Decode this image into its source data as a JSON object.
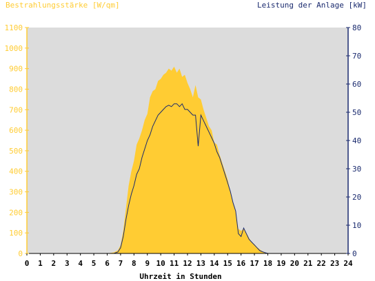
{
  "chart_data": {
    "type": "area",
    "title_left": "Bestrahlungsstärke [W/qm]",
    "title_right": "Leistung der Anlage [kW]",
    "xlabel": "Uhrzeit in Stunden",
    "x_ticks": [
      "0",
      "1",
      "2",
      "3",
      "4",
      "5",
      "6",
      "7",
      "8",
      "9",
      "10",
      "11",
      "12",
      "13",
      "14",
      "15",
      "16",
      "17",
      "18",
      "19",
      "20",
      "21",
      "22",
      "23",
      "24"
    ],
    "y_left_ticks": [
      "0",
      "100",
      "200",
      "300",
      "400",
      "500",
      "600",
      "700",
      "800",
      "900",
      "1000",
      "1100"
    ],
    "y_right_ticks": [
      "0",
      "10",
      "20",
      "30",
      "40",
      "50",
      "60",
      "70",
      "80"
    ],
    "xlim": [
      0,
      24
    ],
    "ylim_left": [
      0,
      1100
    ],
    "ylim_right": [
      0,
      80
    ],
    "grid": false,
    "colors": {
      "plot_background": "#dcdcdc",
      "irradiance_fill": "#ffcc33",
      "power_line": "#1a2a6e",
      "left_axis": "#ffcc33",
      "right_axis": "#1a2a6e",
      "x_axis": "#000000"
    },
    "series": [
      {
        "type": "area",
        "axis": "left",
        "x": [
          0,
          6.0,
          6.5,
          6.8,
          7.0,
          7.2,
          7.4,
          7.6,
          7.8,
          8.0,
          8.2,
          8.4,
          8.6,
          8.8,
          9.0,
          9.2,
          9.4,
          9.6,
          9.8,
          10.0,
          10.2,
          10.4,
          10.6,
          10.8,
          11.0,
          11.2,
          11.4,
          11.6,
          11.8,
          12.0,
          12.2,
          12.4,
          12.6,
          12.8,
          13.0,
          13.2,
          13.4,
          13.6,
          13.8,
          14.0,
          14.2,
          14.4,
          14.6,
          14.8,
          15.0,
          15.2,
          15.4,
          15.6,
          15.8,
          16.0,
          16.2,
          16.4,
          16.6,
          16.8,
          17.0,
          17.2,
          17.4,
          17.6,
          17.8,
          18.0,
          18.2,
          24
        ],
        "values": [
          0,
          0,
          5,
          15,
          40,
          110,
          220,
          330,
          400,
          450,
          530,
          560,
          600,
          650,
          680,
          760,
          790,
          800,
          840,
          850,
          870,
          880,
          900,
          890,
          910,
          880,
          900,
          860,
          870,
          830,
          800,
          760,
          820,
          760,
          750,
          700,
          660,
          620,
          600,
          540,
          530,
          480,
          440,
          400,
          360,
          300,
          250,
          200,
          120,
          110,
          120,
          100,
          75,
          55,
          45,
          30,
          20,
          10,
          4,
          0,
          0,
          0
        ]
      },
      {
        "type": "line",
        "axis": "right",
        "x": [
          0,
          6.5,
          6.8,
          7.0,
          7.2,
          7.4,
          7.6,
          7.8,
          8.0,
          8.2,
          8.4,
          8.6,
          8.8,
          9.0,
          9.2,
          9.4,
          9.6,
          9.8,
          10.0,
          10.2,
          10.4,
          10.6,
          10.8,
          11.0,
          11.2,
          11.4,
          11.6,
          11.8,
          12.0,
          12.2,
          12.4,
          12.6,
          12.8,
          13.0,
          13.2,
          13.4,
          13.6,
          13.8,
          14.0,
          14.2,
          14.4,
          14.6,
          14.8,
          15.0,
          15.2,
          15.4,
          15.6,
          15.8,
          16.0,
          16.2,
          16.4,
          16.6,
          16.8,
          17.0,
          17.2,
          17.4,
          17.6,
          17.8,
          18.0,
          18.2,
          24
        ],
        "values": [
          0,
          0,
          0.5,
          2,
          6,
          12,
          17,
          21,
          24,
          28,
          30,
          34,
          37,
          40,
          42,
          45,
          47,
          49,
          50,
          51,
          52,
          52.5,
          52,
          53,
          53,
          52,
          53,
          51,
          51,
          50,
          49,
          49,
          38,
          49,
          47,
          45,
          43,
          41,
          39,
          36,
          34,
          31,
          28,
          25,
          22,
          18,
          15,
          7,
          6,
          9,
          7,
          5,
          4,
          3,
          2,
          1,
          0.6,
          0.3,
          0,
          0,
          0
        ]
      }
    ]
  }
}
